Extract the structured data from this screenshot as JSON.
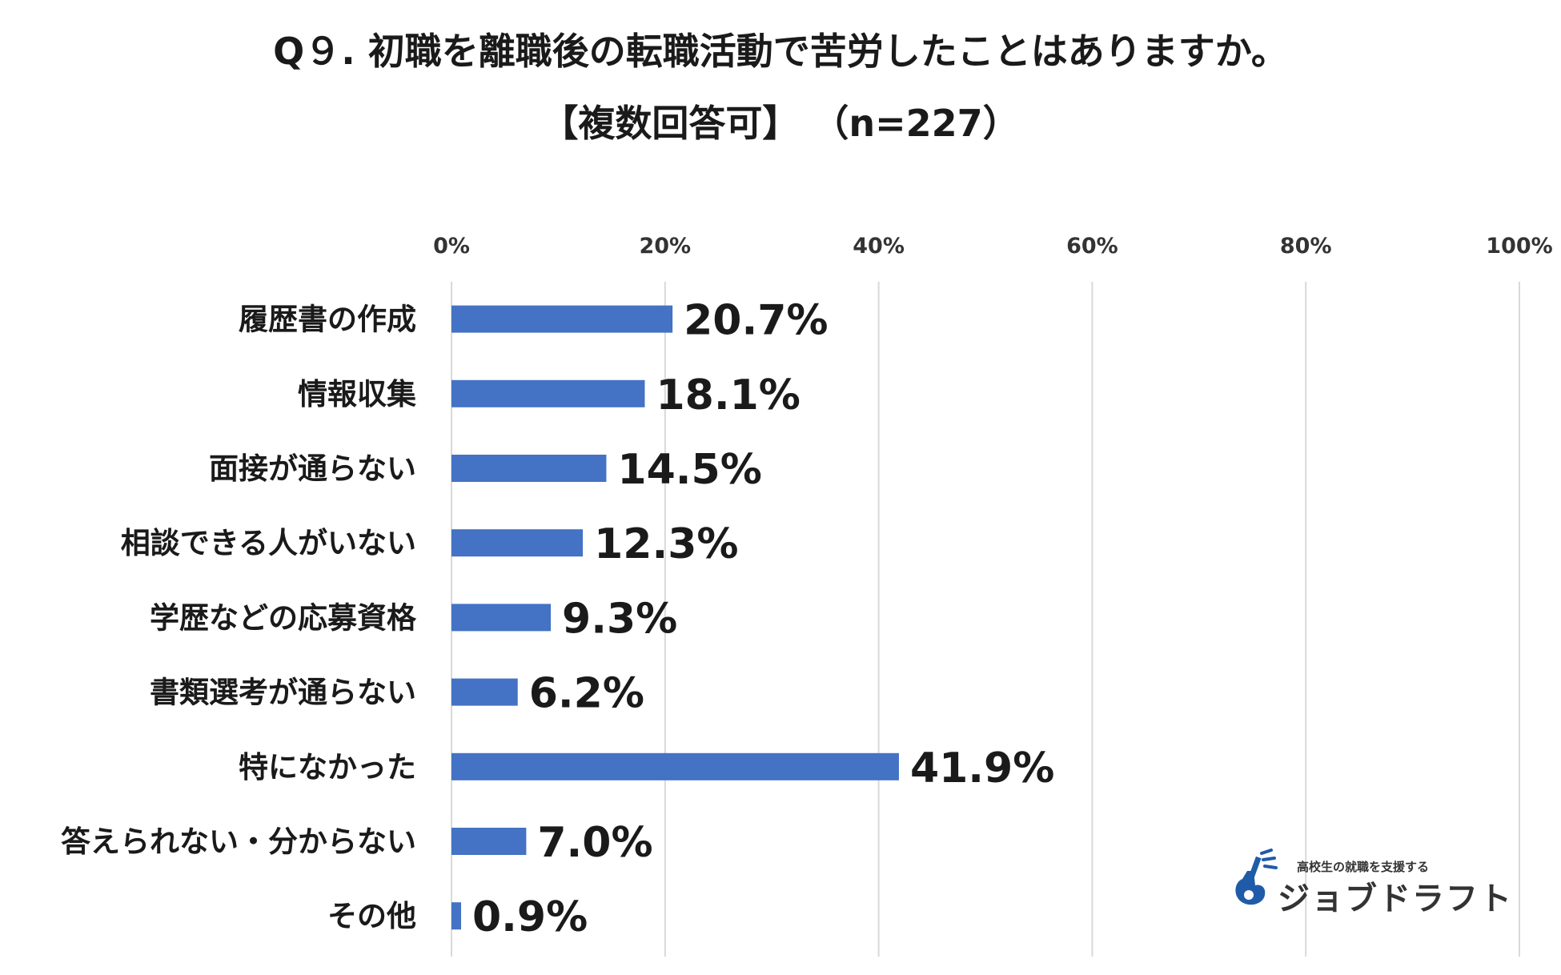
{
  "chart_data": {
    "type": "bar",
    "orientation": "horizontal",
    "title": "Q９. 初職を離職後の転職活動で苦労したことはありますか。",
    "subtitle": "【複数回答可】 （n=227）",
    "categories": [
      "履歴書の作成",
      "情報収集",
      "面接が通らない",
      "相談できる人がいない",
      "学歴などの応募資格",
      "書類選考が通らない",
      "特になかった",
      "答えられない・分からない",
      "その他"
    ],
    "values": [
      20.7,
      18.1,
      14.5,
      12.3,
      9.3,
      6.2,
      41.9,
      7.0,
      0.9
    ],
    "value_labels": [
      "20.7%",
      "18.1%",
      "14.5%",
      "12.3%",
      "9.3%",
      "6.2%",
      "41.9%",
      "7.0%",
      "0.9%"
    ],
    "x_ticks": [
      "0%",
      "20%",
      "40%",
      "60%",
      "80%",
      "100%"
    ],
    "xlim": [
      0,
      100
    ],
    "x_axis_position": "top",
    "grid": true,
    "bar_color": "#4472C4",
    "grid_color": "#D9D9D9"
  },
  "logo": {
    "tagline": "高校生の就職を支援する",
    "name": "ジョブドラフト",
    "color": "#1F5BA8"
  }
}
